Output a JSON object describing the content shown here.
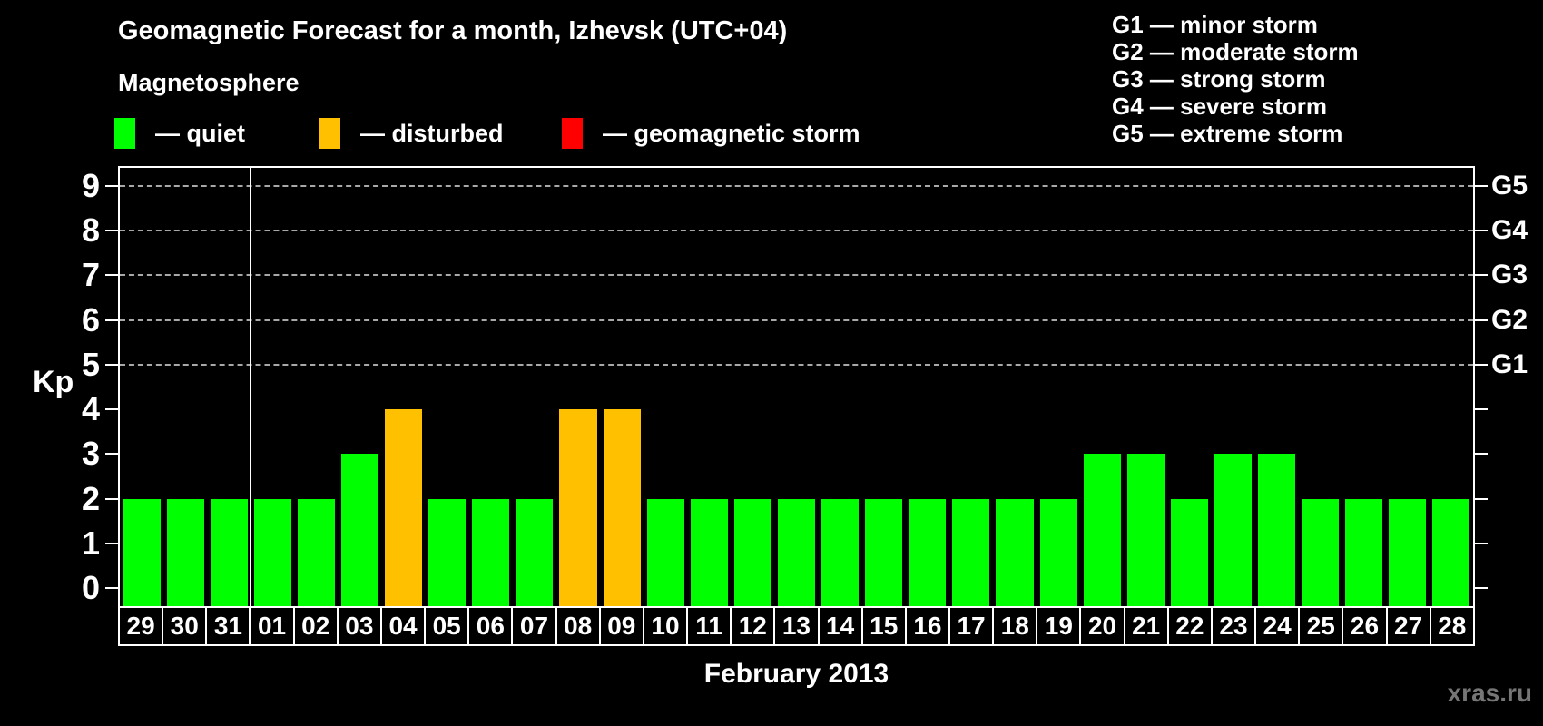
{
  "title": "Geomagnetic Forecast for a month, Izhevsk (UTC+04)",
  "subtitle": "Magnetosphere",
  "legend": {
    "items": [
      {
        "name": "quiet",
        "label": "— quiet",
        "color": "#00ff00"
      },
      {
        "name": "disturbed",
        "label": "— disturbed",
        "color": "#ffc000"
      },
      {
        "name": "storm",
        "label": "— geomagnetic storm",
        "color": "#ff0000"
      }
    ]
  },
  "g_legend": {
    "items": [
      "G1 — minor storm",
      "G2 — moderate storm",
      "G3 — strong storm",
      "G4 — severe storm",
      "G5 — extreme storm"
    ]
  },
  "watermark": "xras.ru",
  "chart_data": {
    "type": "bar",
    "title": "Geomagnetic Forecast for a month, Izhevsk (UTC+04)",
    "xlabel": "February 2013",
    "ylabel": "Kp",
    "ylim": [
      0,
      9
    ],
    "y_ticks": [
      0,
      1,
      2,
      3,
      4,
      5,
      6,
      7,
      8,
      9
    ],
    "gridlines_at": [
      5,
      6,
      7,
      8,
      9
    ],
    "grid": "dashed horizontal lines at storm levels G1-G5",
    "legend_position": "top-left",
    "right_axis": [
      {
        "kp": 5,
        "label": "G1"
      },
      {
        "kp": 6,
        "label": "G2"
      },
      {
        "kp": 7,
        "label": "G3"
      },
      {
        "kp": 8,
        "label": "G4"
      },
      {
        "kp": 9,
        "label": "G5"
      }
    ],
    "categories": [
      "29",
      "30",
      "31",
      "01",
      "02",
      "03",
      "04",
      "05",
      "06",
      "07",
      "08",
      "09",
      "10",
      "11",
      "12",
      "13",
      "14",
      "15",
      "16",
      "17",
      "18",
      "19",
      "20",
      "21",
      "22",
      "23",
      "24",
      "25",
      "26",
      "27",
      "28"
    ],
    "values": [
      2,
      2,
      2,
      2,
      2,
      3,
      4,
      2,
      2,
      2,
      4,
      4,
      2,
      2,
      2,
      2,
      2,
      2,
      2,
      2,
      2,
      2,
      3,
      3,
      2,
      3,
      3,
      2,
      2,
      2,
      2
    ],
    "statuses": [
      "quiet",
      "quiet",
      "quiet",
      "quiet",
      "quiet",
      "quiet",
      "disturbed",
      "quiet",
      "quiet",
      "quiet",
      "disturbed",
      "disturbed",
      "quiet",
      "quiet",
      "quiet",
      "quiet",
      "quiet",
      "quiet",
      "quiet",
      "quiet",
      "quiet",
      "quiet",
      "quiet",
      "quiet",
      "quiet",
      "quiet",
      "quiet",
      "quiet",
      "quiet",
      "quiet",
      "quiet"
    ],
    "status_colors": {
      "quiet": "#00ff00",
      "disturbed": "#ffc000",
      "storm": "#ff0000"
    },
    "month_boundary_after_index": 2
  }
}
